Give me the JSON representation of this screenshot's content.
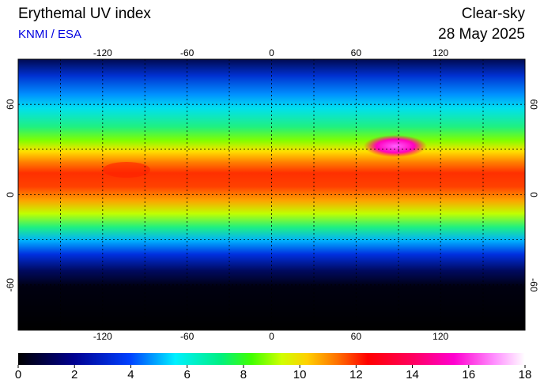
{
  "header": {
    "title": "Erythemal UV index",
    "source": "KNMI / ESA",
    "condition": "Clear-sky",
    "date": "28 May 2025"
  },
  "map": {
    "xlim": [
      -180,
      180
    ],
    "ylim": [
      -90,
      90
    ],
    "xticks": [
      -120,
      -60,
      0,
      60,
      120
    ],
    "yticks": [
      -60,
      0,
      60
    ]
  },
  "colorbar": {
    "lim": [
      0,
      18
    ],
    "ticks": [
      0,
      2,
      4,
      6,
      8,
      10,
      12,
      14,
      16,
      18
    ]
  }
}
